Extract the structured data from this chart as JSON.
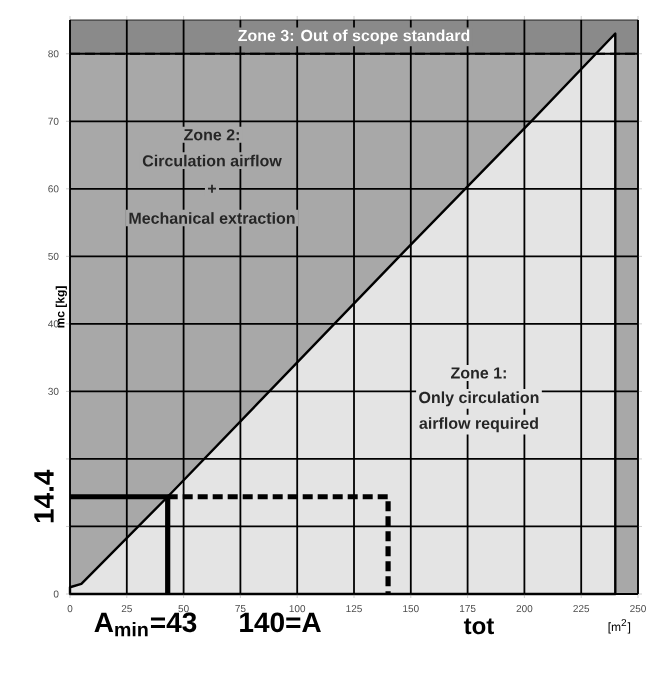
{
  "chart_data": {
    "type": "line",
    "xlabel": "[m$^{2}$]",
    "ylabel": "mc [kg]",
    "xlim": [
      0,
      250
    ],
    "ylim": [
      0,
      85
    ],
    "xticks": [
      0,
      25,
      50,
      75,
      100,
      125,
      150,
      175,
      200,
      225,
      250
    ],
    "yticks": [
      0,
      {
        "value": 10,
        "label": null
      },
      {
        "value": 20,
        "label": null
      },
      30,
      40,
      50,
      60,
      70,
      80
    ],
    "grid": true,
    "series": [
      {
        "type": "area",
        "color": "#e4e4e4",
        "x": [
          0,
          5,
          43,
          145,
          203,
          240
        ],
        "values": [
          1,
          1.5,
          14.4,
          50,
          70,
          83
        ]
      },
      {
        "color": "#000000",
        "line_style": "solid",
        "x": [
          0,
          43,
          43
        ],
        "values": [
          14.4,
          14.4,
          0
        ]
      },
      {
        "color": "#000000",
        "line_style": "dashed",
        "x": [
          43,
          140,
          140
        ],
        "values": [
          14.4,
          14.4,
          0
        ]
      }
    ],
    "ref_lines": [
      {
        "axis": "y",
        "value": 80,
        "line_style": "dashed",
        "color": "#000000"
      }
    ],
    "bands": [
      {
        "axis": "y",
        "from": 0,
        "to": 80,
        "color": "#a8a8a8"
      },
      {
        "axis": "y",
        "from": 80,
        "to": 85,
        "color": "#8a8a8a",
        "label": "Zone 3: Out of scope standard"
      }
    ],
    "annotations": [
      "Zone 2:",
      "Circulation airflow",
      "+",
      "Mechanical extraction",
      "Zone 1:",
      "Only circulation",
      "airflow required",
      {
        "text": "14.4",
        "x": 0,
        "y": 14.4
      },
      {
        "text": "A$_{min}$=43",
        "x": 43,
        "y": 0
      },
      {
        "text": "140=A",
        "x": 140,
        "y": 0
      },
      "tot"
    ]
  }
}
